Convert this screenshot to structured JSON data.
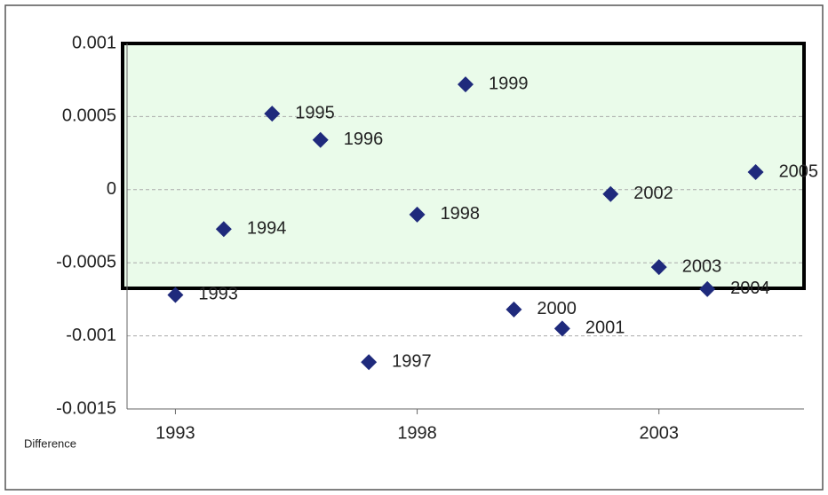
{
  "chart_data": {
    "type": "scatter",
    "xlabel": "Difference",
    "x": [
      1993,
      1994,
      1995,
      1996,
      1997,
      1998,
      1999,
      2000,
      2001,
      2002,
      2003,
      2004,
      2005
    ],
    "series": [
      {
        "color": "#1f2a7c",
        "values": [
          -0.00072,
          -0.00027,
          0.00052,
          0.00034,
          -0.00118,
          -0.00017,
          0.00072,
          -0.00082,
          -0.00095,
          -3e-05,
          -0.00053,
          -0.00068,
          0.00012
        ]
      }
    ],
    "xlim": [
      1992,
      2006
    ],
    "xticks": [
      1993,
      1998,
      2003
    ],
    "ylim": [
      -0.0015,
      0.001
    ],
    "yticks": [
      0.001,
      0.0005,
      0,
      -0.0005,
      -0.001,
      -0.0015
    ],
    "grid": true
  }
}
